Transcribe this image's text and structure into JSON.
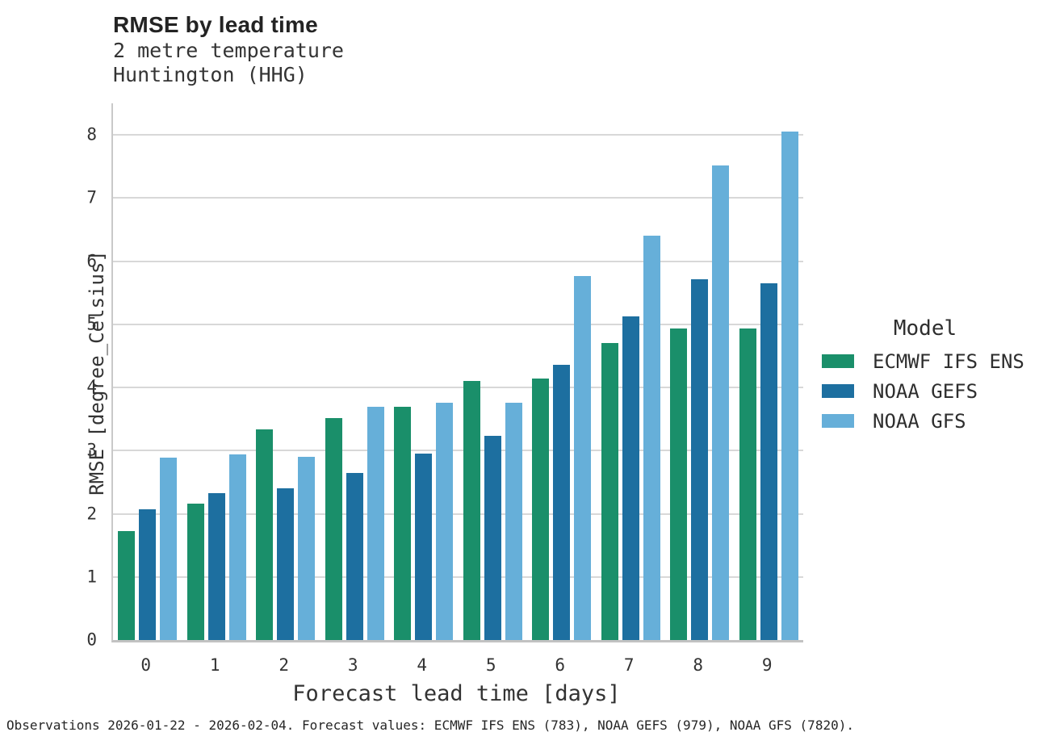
{
  "header": {
    "title": "RMSE by lead time",
    "subtitle1": "2 metre temperature",
    "subtitle2": "Huntington (HHG)"
  },
  "chart_data": {
    "type": "bar",
    "title": "RMSE by lead time",
    "subtitle": [
      "2 metre temperature",
      "Huntington (HHG)"
    ],
    "xlabel": "Forecast lead time [days]",
    "ylabel": "RMSE [degree_Celsius]",
    "categories": [
      "0",
      "1",
      "2",
      "3",
      "4",
      "5",
      "6",
      "7",
      "8",
      "9"
    ],
    "series": [
      {
        "name": "ECMWF IFS ENS",
        "color": "#1a8f6a",
        "values": [
          1.73,
          2.16,
          3.33,
          3.52,
          3.7,
          4.1,
          4.14,
          4.7,
          4.94,
          4.94
        ]
      },
      {
        "name": "NOAA GEFS",
        "color": "#1d6fa0",
        "values": [
          2.07,
          2.33,
          2.4,
          2.65,
          2.95,
          3.23,
          4.36,
          5.12,
          5.72,
          5.65
        ]
      },
      {
        "name": "NOAA GFS",
        "color": "#66afd9",
        "values": [
          2.89,
          2.94,
          2.9,
          3.7,
          3.76,
          3.76,
          5.76,
          6.41,
          7.51,
          8.05
        ]
      }
    ],
    "yticks": [
      0,
      1,
      2,
      3,
      4,
      5,
      6,
      7,
      8
    ],
    "ylim": [
      0,
      8.5
    ],
    "grid": "horizontal",
    "grid_color": "#d8d8d8",
    "spine_color": "#c9c9c9",
    "legend_title": "Model",
    "legend_position": "right"
  },
  "footer": {
    "note": "Observations 2026-01-22 - 2026-02-04. Forecast values: ECMWF IFS ENS (783), NOAA GEFS (979), NOAA GFS (7820)."
  }
}
